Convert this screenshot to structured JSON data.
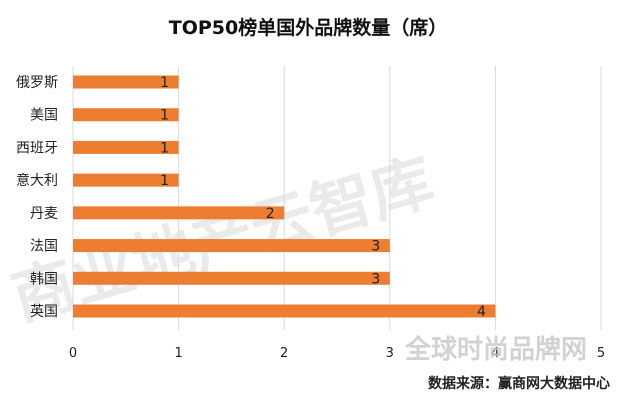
{
  "chart_data": {
    "type": "bar",
    "orientation": "horizontal",
    "title": "TOP50榜单国外品牌数量（席）",
    "categories": [
      "俄罗斯",
      "美国",
      "西班牙",
      "意大利",
      "丹麦",
      "法国",
      "韩国",
      "英国"
    ],
    "values": [
      1,
      1,
      1,
      1,
      2,
      3,
      3,
      4
    ],
    "data_labels": [
      "1",
      "1",
      "1",
      "1",
      "2",
      "3",
      "3",
      "4"
    ],
    "xlim": [
      0,
      5
    ],
    "x_ticks": [
      "0",
      "1",
      "2",
      "3",
      "4",
      "5"
    ],
    "xlabel": "",
    "ylabel": "",
    "grid": "vertical",
    "legend": "none",
    "bar_color": "#ed7d31",
    "grid_color": "#d9d9d9"
  },
  "watermark": {
    "main_text": "商业地产云智库",
    "secondary_text": "全球时尚品牌网"
  },
  "source": "数据来源：赢商网大数据中心"
}
